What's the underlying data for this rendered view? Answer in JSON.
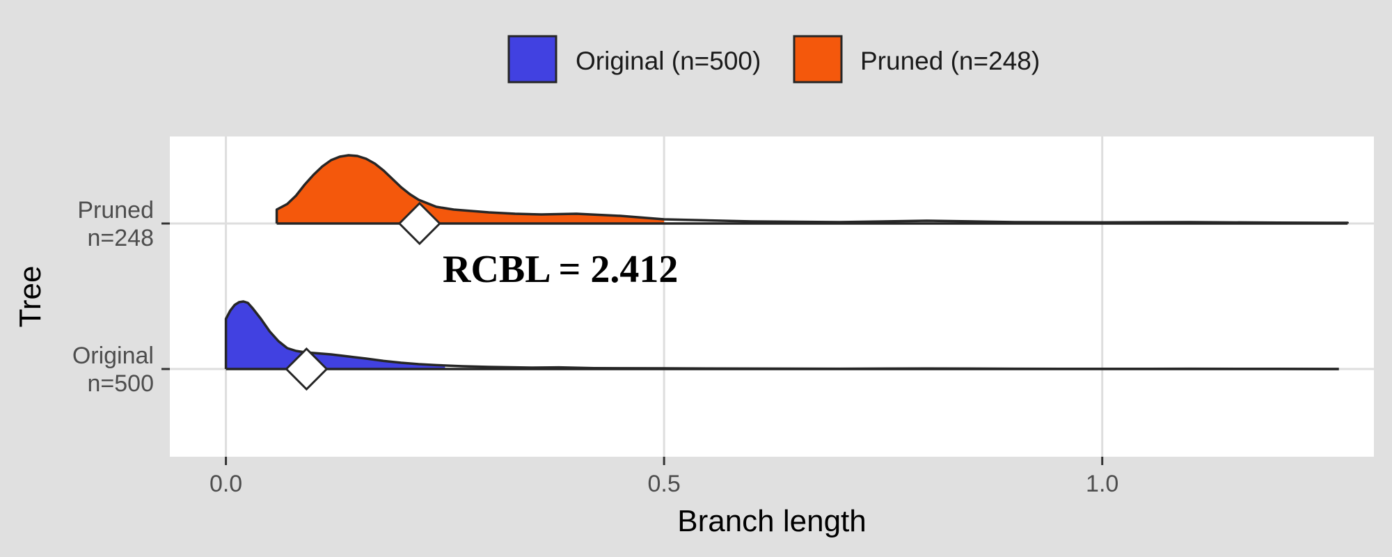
{
  "chart_data": {
    "type": "ridgeline",
    "xlabel": "Branch length",
    "ylabel": "Tree",
    "xlim": [
      -0.064,
      1.31
    ],
    "x_ticks": [
      {
        "value": 0.0,
        "label": "0.0"
      },
      {
        "value": 0.5,
        "label": "0.5"
      },
      {
        "value": 1.0,
        "label": "1.0"
      }
    ],
    "grid": true,
    "legend_position": "top",
    "legend": [
      {
        "key": "original",
        "label": "Original (n=500)"
      },
      {
        "key": "pruned",
        "label": "Pruned (n=248)"
      }
    ],
    "annotation": "RCBL = 2.412",
    "series": [
      {
        "key": "original",
        "color": "#4141e1",
        "row_label": [
          "Original",
          "n=500"
        ],
        "mean_marker": 0.092,
        "fill_until": 0.25,
        "density": [
          [
            0.0,
            0.36
          ],
          [
            0.005,
            0.42
          ],
          [
            0.01,
            0.46
          ],
          [
            0.015,
            0.48
          ],
          [
            0.02,
            0.485
          ],
          [
            0.025,
            0.475
          ],
          [
            0.03,
            0.44
          ],
          [
            0.04,
            0.36
          ],
          [
            0.05,
            0.27
          ],
          [
            0.06,
            0.2
          ],
          [
            0.07,
            0.15
          ],
          [
            0.08,
            0.13
          ],
          [
            0.09,
            0.12
          ],
          [
            0.1,
            0.115
          ],
          [
            0.11,
            0.11
          ],
          [
            0.12,
            0.105
          ],
          [
            0.14,
            0.09
          ],
          [
            0.16,
            0.075
          ],
          [
            0.18,
            0.058
          ],
          [
            0.2,
            0.045
          ],
          [
            0.22,
            0.035
          ],
          [
            0.24,
            0.028
          ],
          [
            0.27,
            0.02
          ],
          [
            0.3,
            0.015
          ],
          [
            0.35,
            0.01
          ],
          [
            0.38,
            0.012
          ],
          [
            0.42,
            0.006
          ],
          [
            0.5,
            0.005
          ],
          [
            0.6,
            0.003
          ],
          [
            0.7,
            0.002
          ],
          [
            0.8,
            0.004
          ],
          [
            0.9,
            0.002
          ],
          [
            1.0,
            0.001
          ],
          [
            1.1,
            0.002
          ],
          [
            1.2,
            0.001
          ],
          [
            1.27,
            0.0
          ]
        ]
      },
      {
        "key": "pruned",
        "color": "#f4580c",
        "row_label": [
          "Pruned",
          "n=248"
        ],
        "mean_marker": 0.221,
        "fill_until": 0.5,
        "density": [
          [
            0.058,
            0.1
          ],
          [
            0.07,
            0.14
          ],
          [
            0.08,
            0.2
          ],
          [
            0.09,
            0.28
          ],
          [
            0.1,
            0.35
          ],
          [
            0.11,
            0.41
          ],
          [
            0.12,
            0.455
          ],
          [
            0.13,
            0.48
          ],
          [
            0.14,
            0.49
          ],
          [
            0.15,
            0.485
          ],
          [
            0.16,
            0.465
          ],
          [
            0.17,
            0.43
          ],
          [
            0.18,
            0.38
          ],
          [
            0.19,
            0.32
          ],
          [
            0.2,
            0.26
          ],
          [
            0.21,
            0.21
          ],
          [
            0.22,
            0.17
          ],
          [
            0.24,
            0.12
          ],
          [
            0.26,
            0.1
          ],
          [
            0.28,
            0.09
          ],
          [
            0.3,
            0.08
          ],
          [
            0.33,
            0.07
          ],
          [
            0.36,
            0.065
          ],
          [
            0.4,
            0.07
          ],
          [
            0.45,
            0.055
          ],
          [
            0.5,
            0.03
          ],
          [
            0.6,
            0.015
          ],
          [
            0.7,
            0.01
          ],
          [
            0.8,
            0.02
          ],
          [
            0.9,
            0.01
          ],
          [
            1.0,
            0.008
          ],
          [
            1.1,
            0.01
          ],
          [
            1.2,
            0.006
          ],
          [
            1.28,
            0.005
          ]
        ]
      }
    ]
  }
}
